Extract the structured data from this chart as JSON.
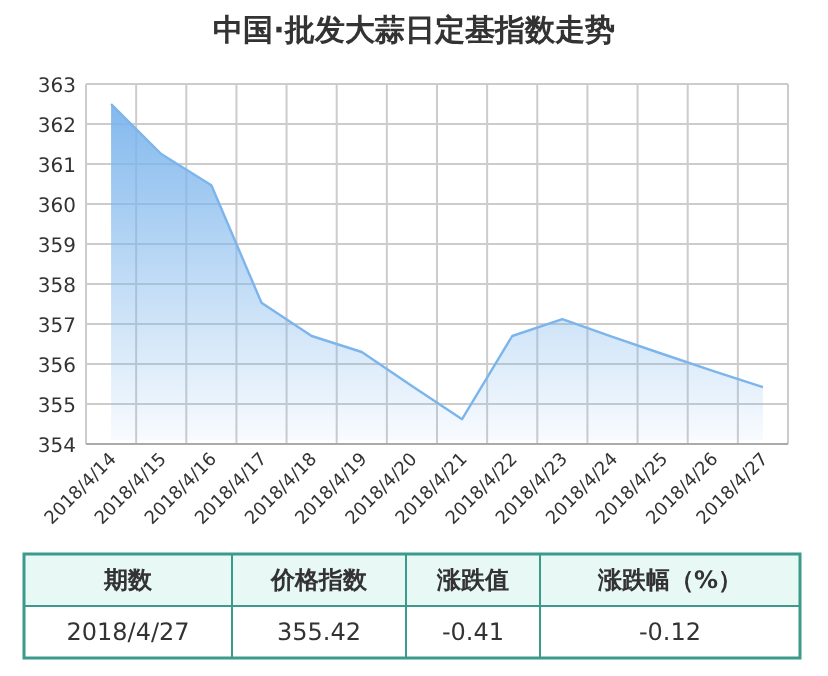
{
  "chart_data": {
    "type": "area",
    "title": "中国·批发大蒜日定基指数走势",
    "categories": [
      "2018/4/14",
      "2018/4/15",
      "2018/4/16",
      "2018/4/17",
      "2018/4/18",
      "2018/4/19",
      "2018/4/20",
      "2018/4/21",
      "2018/4/22",
      "2018/4/23",
      "2018/4/24",
      "2018/4/25",
      "2018/4/26",
      "2018/4/27"
    ],
    "values": [
      362.5,
      361.25,
      360.47,
      357.53,
      356.7,
      356.3,
      355.45,
      354.62,
      356.7,
      357.12,
      356.68,
      356.25,
      355.83,
      355.42
    ],
    "color": "#7cb5ec",
    "ylim": [
      354,
      363
    ],
    "yticks": [
      354,
      355,
      356,
      357,
      358,
      359,
      360,
      361,
      362,
      363
    ],
    "grid": true,
    "annotations": [
      "期数",
      "价格指数",
      "涨跌值",
      "涨跌幅（%）",
      "2018/4/27",
      "355.42",
      "-0.41",
      "-0.12"
    ]
  }
}
